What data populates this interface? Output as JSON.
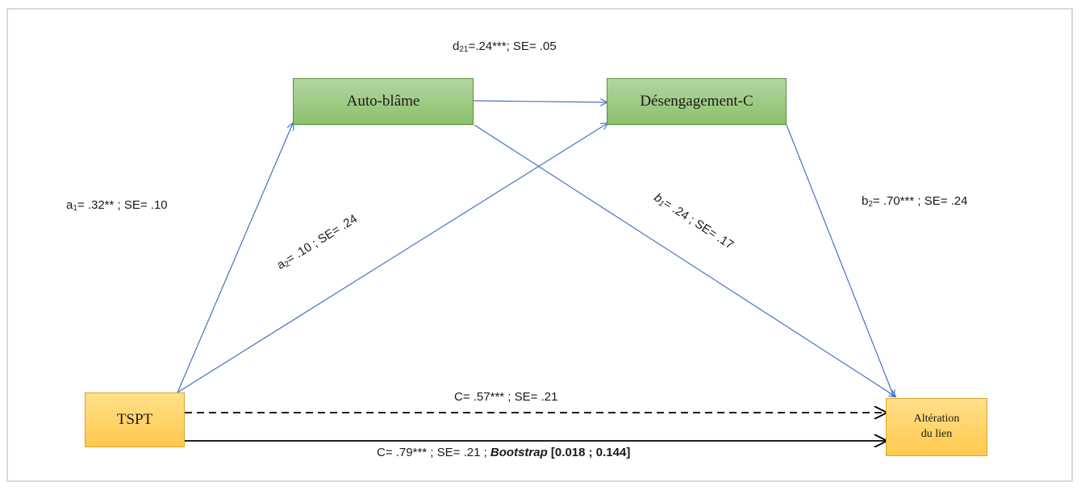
{
  "nodes": {
    "auto_blame": "Auto-blâme",
    "desengagement": "Désengagement-C",
    "tspt": "TSPT",
    "alteration_line1": "Altération",
    "alteration_line2": "du lien"
  },
  "paths": {
    "d21": {
      "symbol": "d",
      "sub": "21",
      "text": "=.24***; SE= .05"
    },
    "a1": {
      "symbol": "a",
      "sub": "1",
      "text": "= .32** ; SE= .10"
    },
    "a2": {
      "symbol": "a",
      "sub": "2",
      "text": "= .10 ; SE= .24"
    },
    "b1": {
      "symbol": "b",
      "sub": "1",
      "text": "= .24 ; SE= .17"
    },
    "b2": {
      "symbol": "b",
      "sub": "2",
      "text": "= .70*** ; SE= .24"
    },
    "c_dashed": "C= .57*** ; SE= .21",
    "c_solid_prefix": "C= .79*** ; SE= .21 ; ",
    "c_solid_bootstrap": "Bootstrap",
    "c_solid_ci": " [0.018 ; 0.144]"
  },
  "colors": {
    "arrow_blue": "#4472c4",
    "arrow_black": "#000000",
    "green_fill": "#9ccc7f",
    "orange_fill": "#ffd36b"
  }
}
